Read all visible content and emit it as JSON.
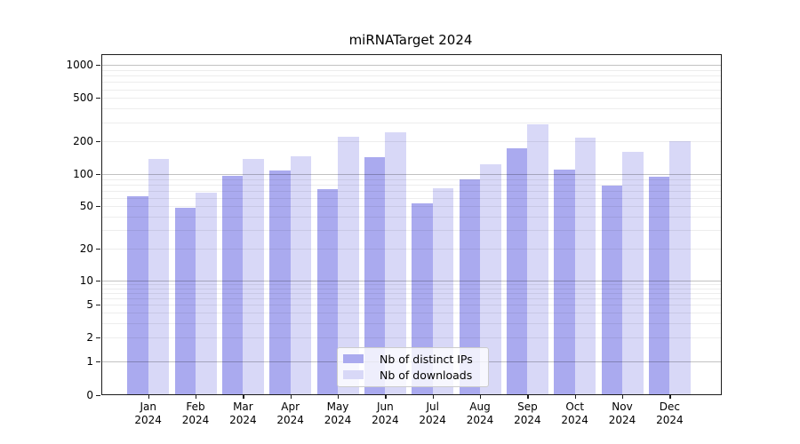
{
  "title": "miRNATarget 2024",
  "chart_data": {
    "type": "bar",
    "title": "miRNATarget 2024",
    "categories": [
      "Jan 2024",
      "Feb 2024",
      "Mar 2024",
      "Apr 2024",
      "May 2024",
      "Jun 2024",
      "Jul 2024",
      "Aug 2024",
      "Sep 2024",
      "Oct 2024",
      "Nov 2024",
      "Dec 2024"
    ],
    "month_labels": [
      "Jan",
      "Feb",
      "Mar",
      "Apr",
      "May",
      "Jun",
      "Jul",
      "Aug",
      "Sep",
      "Oct",
      "Nov",
      "Dec"
    ],
    "year_label": "2024",
    "series": [
      {
        "name": "Nb of distinct IPs",
        "color": "#aaaaef",
        "values": [
          62,
          48,
          97,
          108,
          73,
          144,
          53,
          90,
          174,
          111,
          78,
          95
        ]
      },
      {
        "name": "Nb of downloads",
        "color": "#d8d8f7",
        "values": [
          138,
          67,
          139,
          147,
          220,
          242,
          74,
          124,
          287,
          217,
          161,
          201
        ]
      }
    ],
    "yscale": "symlog",
    "ylabel": "",
    "xlabel": "",
    "yticks": [
      0,
      1,
      2,
      5,
      10,
      20,
      50,
      100,
      200,
      500,
      1000
    ],
    "ylim": [
      0,
      1270
    ],
    "grid": "both",
    "legend_position": "lower center"
  },
  "colors": {
    "distinct_ips": "#aaaaef",
    "downloads": "#d8d8f7",
    "major_grid": "#bdbdbd",
    "minor_grid": "#ececec",
    "spine": "#1c1c1c",
    "background": "#ffffff"
  }
}
